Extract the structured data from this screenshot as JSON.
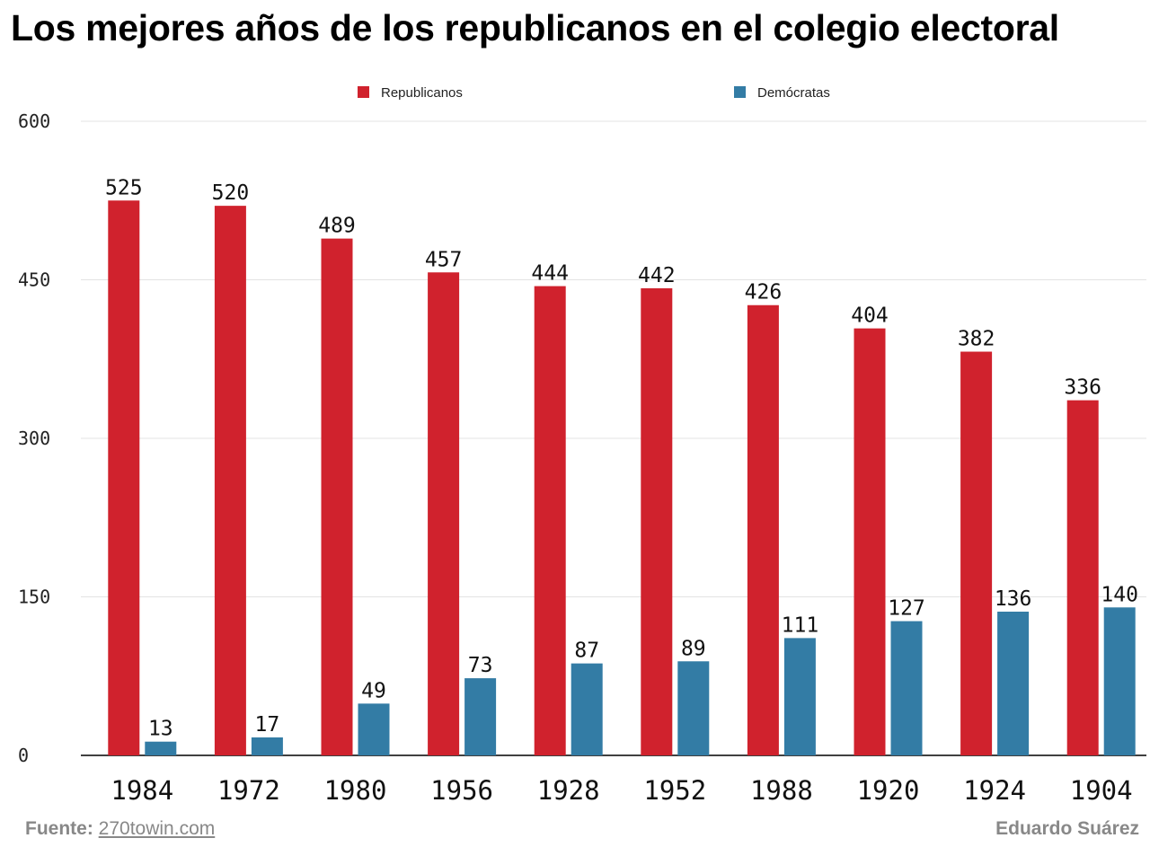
{
  "title": "Los mejores años de los republicanos en el colegio electoral",
  "colors": {
    "republicanos": "#d0222d",
    "democratas": "#337ca5"
  },
  "footer": {
    "source_label": "Fuente:",
    "source_link": "270towin.com",
    "author": "Eduardo Suárez"
  },
  "chart_data": {
    "type": "bar",
    "title": "Los mejores años de los republicanos en el colegio electoral",
    "xlabel": "",
    "ylabel": "",
    "ylim": [
      0,
      600
    ],
    "yticks": [
      0,
      150,
      300,
      450,
      600
    ],
    "grid": true,
    "legend_position": "top",
    "categories": [
      "1984",
      "1972",
      "1980",
      "1956",
      "1928",
      "1952",
      "1988",
      "1920",
      "1924",
      "1904"
    ],
    "series": [
      {
        "name": "Republicanos",
        "values": [
          525,
          520,
          489,
          457,
          444,
          442,
          426,
          404,
          382,
          336
        ]
      },
      {
        "name": "Demócratas",
        "values": [
          13,
          17,
          49,
          73,
          87,
          89,
          111,
          127,
          136,
          140
        ]
      }
    ]
  }
}
